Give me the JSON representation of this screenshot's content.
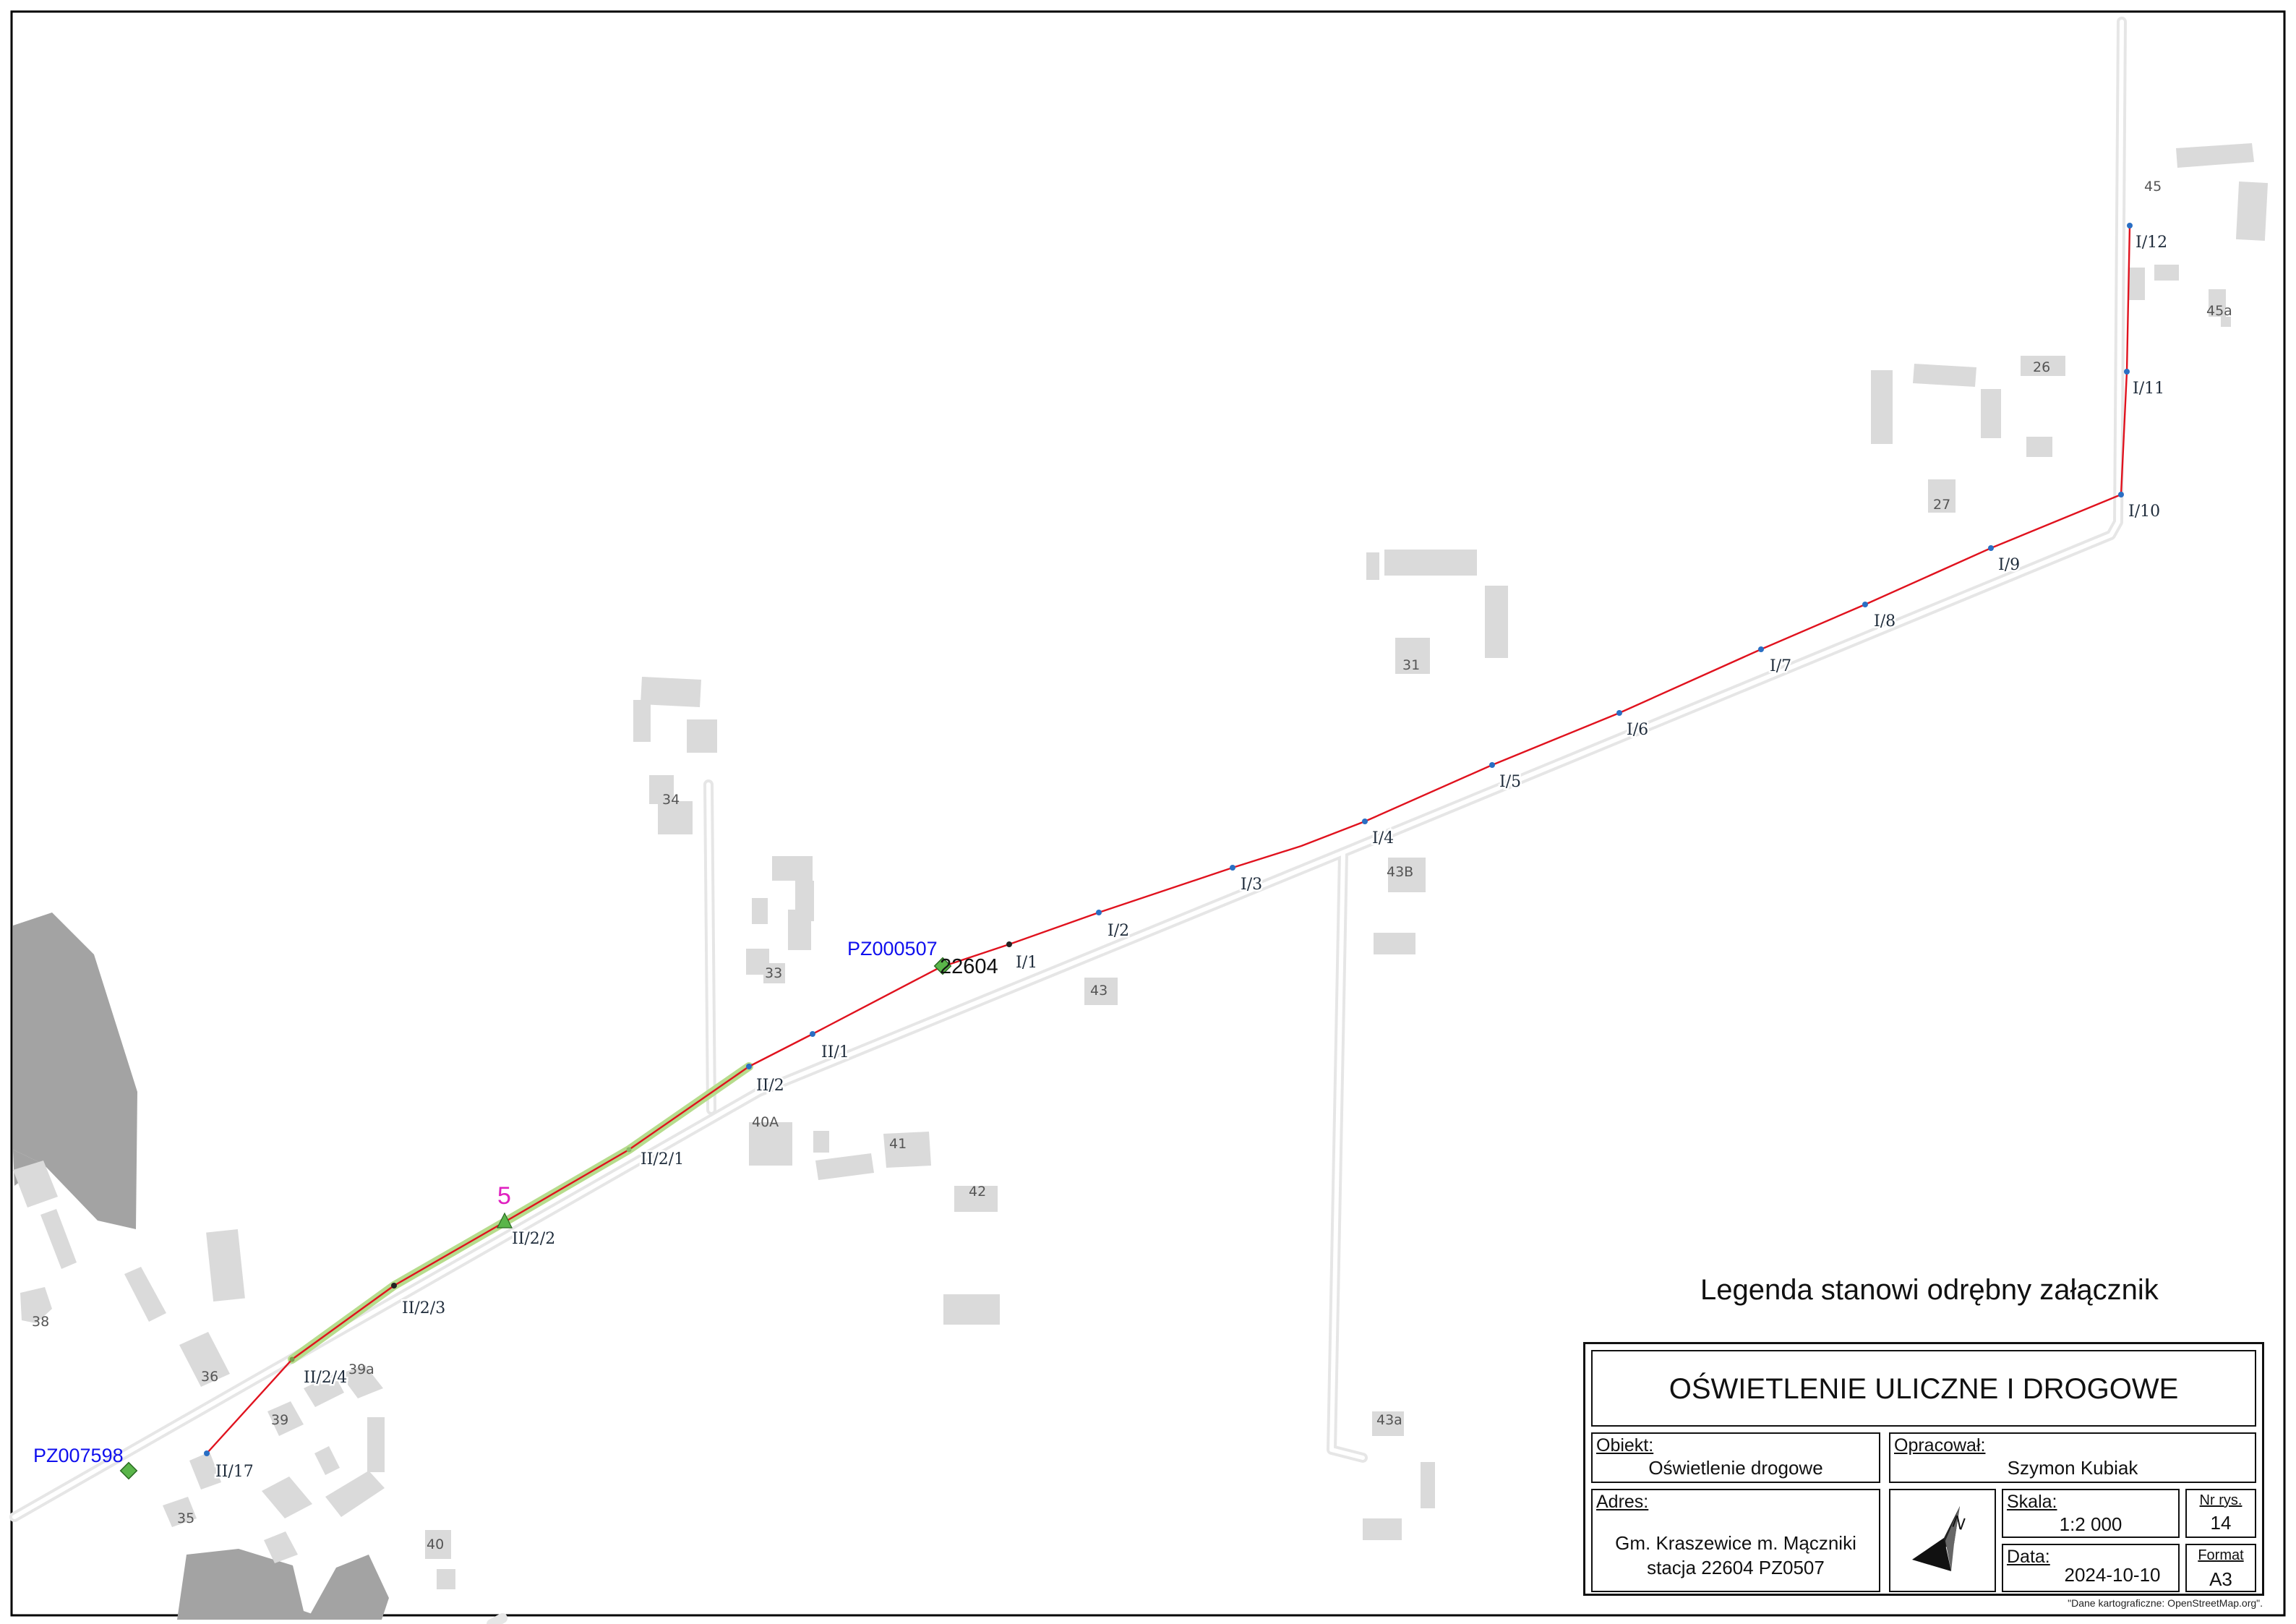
{
  "map": {
    "building_numbers": [
      "45",
      "45a",
      "26",
      "27",
      "31",
      "34",
      "33",
      "43B",
      "43",
      "40A",
      "41",
      "42",
      "43a",
      "38",
      "36",
      "39a",
      "39",
      "35",
      "40"
    ],
    "pole_labels": [
      "I/1",
      "I/2",
      "I/3",
      "I/4",
      "I/5",
      "I/6",
      "I/7",
      "I/8",
      "I/9",
      "I/10",
      "I/11",
      "I/12",
      "II/1",
      "II/2",
      "II/2/1",
      "II/2/2",
      "II/2/3",
      "II/2/4",
      "II/17"
    ],
    "station_labels": [
      "PZ000507",
      "PZ007598"
    ],
    "station_number": "22604",
    "marker_label": "5",
    "colors": {
      "cable": "#e0121e",
      "pole": "#2a6fc4",
      "highlight": "#b6dc8c",
      "station": "#5ab54a",
      "station_label": "#1010ee",
      "marker": "#e020c0",
      "building": "#dadada",
      "forest": "#a3a3a3",
      "road": "#e8e8e8"
    }
  },
  "legend_note": "Legenda stanowi odrębny załącznik",
  "title_block": {
    "title": "OŚWIETLENIE ULICZNE I DROGOWE",
    "obiekt_label": "Obiekt:",
    "obiekt_value": "Oświetlenie drogowe",
    "opracowal_label": "Opracował:",
    "opracowal_value": "Szymon Kubiak",
    "adres_label": "Adres:",
    "adres_line1": "Gm. Kraszewice m. Mączniki",
    "adres_line2": "stacja 22604 PZ0507",
    "skala_label": "Skala:",
    "skala_value": "1:2 000",
    "nr_label": "Nr rys.",
    "nr_value": "14",
    "data_label": "Data:",
    "data_value": "2024-10-10",
    "format_label": "Format",
    "format_value": "A3",
    "north_icon": "north-arrow-icon",
    "north_letter": "N"
  },
  "credit": "\"Dane kartograficzne: OpenStreetMap.org\"."
}
